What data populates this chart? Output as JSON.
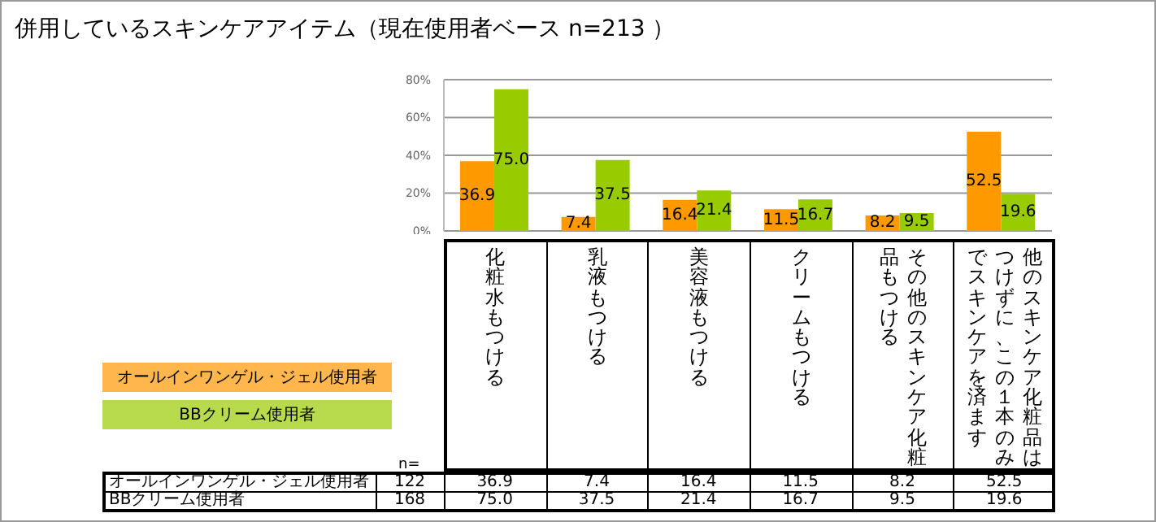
{
  "chart_data": {
    "type": "bar",
    "title": "併用しているスキンケアアイテム（現在使用者ベース n=213 ）",
    "categories": [
      "化粧水もつける",
      "乳液もつける",
      "美容液もつける",
      "クリームもつける",
      "その他のスキンケア化粧品もつける",
      "他のスキンケア化粧品はつけずに、この１本のみでスキンケアを済ます"
    ],
    "series": [
      {
        "name": "オールインワンゲル・ジェル使用者",
        "color": "#ff9900",
        "values": [
          36.9,
          7.4,
          16.4,
          11.5,
          8.2,
          52.5
        ],
        "value_labels": [
          "36.9",
          "7.4",
          "16.4",
          "11.5",
          "8.2",
          "52.5"
        ]
      },
      {
        "name": "BBクリーム使用者",
        "color": "#99cc00",
        "values": [
          75.0,
          37.5,
          21.4,
          16.7,
          9.5,
          19.6
        ],
        "value_labels": [
          "75.0",
          "37.5",
          "21.4",
          "16.7",
          "9.5",
          "19.6"
        ]
      }
    ],
    "ylim": [
      0,
      80
    ],
    "yticks": [
      {
        "value": 0,
        "label": "0%"
      },
      {
        "value": 20,
        "label": "20%"
      },
      {
        "value": 40,
        "label": "40%"
      },
      {
        "value": 60,
        "label": "60%"
      },
      {
        "value": 80,
        "label": "80%"
      }
    ],
    "grid": "y",
    "legend": "bottom left",
    "annotations": [
      "n=",
      "122",
      "168"
    ]
  }
}
